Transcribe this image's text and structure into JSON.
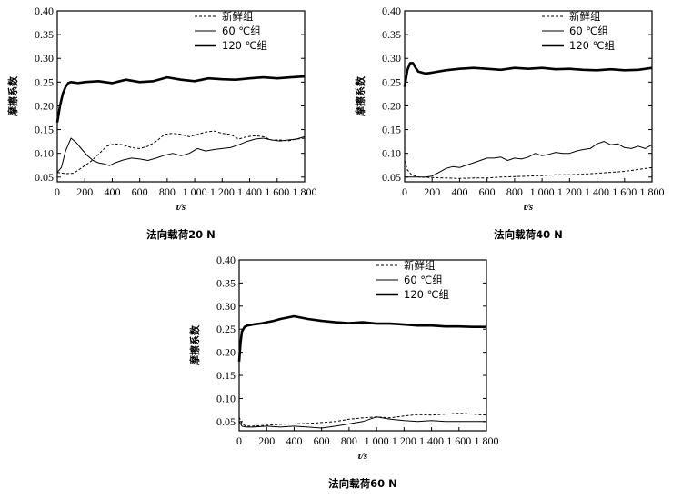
{
  "chart_data": [
    {
      "type": "line",
      "caption": "法向载荷20 N",
      "xlabel": "t/s",
      "ylabel": "摩擦系数",
      "xlim": [
        0,
        1800
      ],
      "ylim": [
        0.04,
        0.4
      ],
      "xticks": [
        0,
        200,
        400,
        600,
        800,
        1000,
        1200,
        1400,
        1600,
        1800
      ],
      "xtick_labels": [
        "0",
        "200",
        "400",
        "600",
        "800",
        "1 000",
        "1 200",
        "1 400",
        "1 600",
        "1 800"
      ],
      "yticks": [
        0.05,
        0.1,
        0.15,
        0.2,
        0.25,
        0.3,
        0.35,
        0.4
      ],
      "ytick_labels": [
        "0.05",
        "0.10",
        "0.15",
        "0.20",
        "0.25",
        "0.30",
        "0.35",
        "0.40"
      ],
      "legend_position": "top-right",
      "series": [
        {
          "name": "新鲜组",
          "style": "dashed",
          "x": [
            0,
            60,
            120,
            180,
            240,
            300,
            360,
            420,
            480,
            540,
            600,
            660,
            720,
            780,
            840,
            900,
            960,
            1020,
            1080,
            1140,
            1200,
            1260,
            1320,
            1380,
            1440,
            1500,
            1560,
            1620,
            1680,
            1740,
            1800
          ],
          "values": [
            0.06,
            0.057,
            0.058,
            0.07,
            0.082,
            0.098,
            0.115,
            0.12,
            0.118,
            0.112,
            0.11,
            0.115,
            0.125,
            0.14,
            0.142,
            0.14,
            0.135,
            0.14,
            0.145,
            0.147,
            0.142,
            0.14,
            0.13,
            0.135,
            0.137,
            0.135,
            0.128,
            0.128,
            0.126,
            0.13,
            0.132
          ]
        },
        {
          "name": "60 ℃组",
          "style": "solid",
          "x": [
            0,
            30,
            60,
            100,
            140,
            180,
            220,
            260,
            300,
            340,
            380,
            420,
            480,
            540,
            600,
            660,
            720,
            780,
            840,
            900,
            960,
            1020,
            1080,
            1140,
            1200,
            1260,
            1320,
            1380,
            1440,
            1500,
            1560,
            1620,
            1680,
            1740,
            1800
          ],
          "values": [
            0.06,
            0.07,
            0.105,
            0.132,
            0.122,
            0.108,
            0.095,
            0.085,
            0.08,
            0.078,
            0.074,
            0.08,
            0.086,
            0.09,
            0.088,
            0.085,
            0.09,
            0.096,
            0.1,
            0.095,
            0.1,
            0.11,
            0.105,
            0.108,
            0.11,
            0.112,
            0.118,
            0.125,
            0.13,
            0.132,
            0.128,
            0.126,
            0.128,
            0.13,
            0.135
          ]
        },
        {
          "name": "120 ℃组",
          "style": "thick",
          "x": [
            0,
            20,
            40,
            60,
            80,
            100,
            150,
            200,
            300,
            400,
            500,
            600,
            700,
            800,
            900,
            1000,
            1100,
            1200,
            1300,
            1400,
            1500,
            1600,
            1700,
            1800
          ],
          "values": [
            0.165,
            0.2,
            0.225,
            0.24,
            0.248,
            0.25,
            0.248,
            0.25,
            0.252,
            0.248,
            0.255,
            0.25,
            0.252,
            0.26,
            0.255,
            0.252,
            0.258,
            0.256,
            0.255,
            0.258,
            0.26,
            0.258,
            0.26,
            0.262
          ]
        }
      ]
    },
    {
      "type": "line",
      "caption": "法向载荷40 N",
      "xlabel": "t/s",
      "ylabel": "摩擦系数",
      "xlim": [
        0,
        1800
      ],
      "ylim": [
        0.04,
        0.4
      ],
      "xticks": [
        0,
        200,
        400,
        600,
        800,
        1000,
        1200,
        1400,
        1600,
        1800
      ],
      "xtick_labels": [
        "0",
        "200",
        "400",
        "600",
        "800",
        "1 000",
        "1 200",
        "1 400",
        "1 600",
        "1 800"
      ],
      "yticks": [
        0.05,
        0.1,
        0.15,
        0.2,
        0.25,
        0.3,
        0.35,
        0.4
      ],
      "ytick_labels": [
        "0.05",
        "0.10",
        "0.15",
        "0.20",
        "0.25",
        "0.30",
        "0.35",
        "0.40"
      ],
      "legend_position": "top-right",
      "series": [
        {
          "name": "新鲜组",
          "style": "dashed",
          "x": [
            0,
            20,
            50,
            100,
            200,
            300,
            400,
            500,
            600,
            700,
            800,
            900,
            1000,
            1100,
            1200,
            1300,
            1400,
            1500,
            1600,
            1700,
            1800
          ],
          "values": [
            0.085,
            0.065,
            0.055,
            0.05,
            0.049,
            0.048,
            0.047,
            0.048,
            0.048,
            0.05,
            0.051,
            0.052,
            0.053,
            0.055,
            0.055,
            0.056,
            0.058,
            0.06,
            0.062,
            0.066,
            0.07
          ]
        },
        {
          "name": "60 ℃组",
          "style": "solid",
          "x": [
            0,
            50,
            100,
            150,
            200,
            250,
            300,
            350,
            400,
            450,
            500,
            550,
            600,
            650,
            700,
            750,
            800,
            850,
            900,
            950,
            1000,
            1050,
            1100,
            1150,
            1200,
            1250,
            1300,
            1350,
            1400,
            1450,
            1500,
            1550,
            1600,
            1650,
            1700,
            1750,
            1800
          ],
          "values": [
            0.05,
            0.05,
            0.05,
            0.05,
            0.052,
            0.06,
            0.068,
            0.072,
            0.07,
            0.075,
            0.08,
            0.085,
            0.09,
            0.09,
            0.092,
            0.085,
            0.09,
            0.088,
            0.092,
            0.1,
            0.095,
            0.098,
            0.102,
            0.1,
            0.1,
            0.105,
            0.108,
            0.11,
            0.12,
            0.125,
            0.118,
            0.12,
            0.112,
            0.11,
            0.115,
            0.11,
            0.118
          ]
        },
        {
          "name": "120 ℃组",
          "style": "thick",
          "x": [
            0,
            20,
            40,
            60,
            80,
            100,
            150,
            200,
            300,
            400,
            500,
            600,
            700,
            800,
            900,
            1000,
            1100,
            1200,
            1300,
            1400,
            1500,
            1600,
            1700,
            1800
          ],
          "values": [
            0.24,
            0.275,
            0.29,
            0.29,
            0.28,
            0.272,
            0.268,
            0.27,
            0.275,
            0.278,
            0.28,
            0.278,
            0.276,
            0.28,
            0.278,
            0.28,
            0.277,
            0.278,
            0.276,
            0.275,
            0.277,
            0.275,
            0.276,
            0.28
          ]
        }
      ]
    },
    {
      "type": "line",
      "caption": "法向载荷60 N",
      "xlabel": "t/s",
      "ylabel": "摩擦系数",
      "xlim": [
        0,
        1800
      ],
      "ylim": [
        0.03,
        0.4
      ],
      "xticks": [
        0,
        200,
        400,
        600,
        800,
        1000,
        1200,
        1400,
        1600,
        1800
      ],
      "xtick_labels": [
        "0",
        "200",
        "400",
        "600",
        "800",
        "1 000",
        "1 200",
        "1 400",
        "1 600",
        "1 800"
      ],
      "yticks": [
        0.05,
        0.1,
        0.15,
        0.2,
        0.25,
        0.3,
        0.35,
        0.4
      ],
      "ytick_labels": [
        "0.05",
        "0.10",
        "0.15",
        "0.20",
        "0.25",
        "0.30",
        "0.35",
        "0.40"
      ],
      "legend_position": "top-right",
      "series": [
        {
          "name": "新鲜组",
          "style": "dashed",
          "x": [
            0,
            20,
            50,
            100,
            200,
            300,
            400,
            500,
            600,
            700,
            800,
            900,
            1000,
            1100,
            1200,
            1300,
            1400,
            1500,
            1600,
            1700,
            1800
          ],
          "values": [
            0.06,
            0.045,
            0.04,
            0.04,
            0.042,
            0.044,
            0.045,
            0.046,
            0.048,
            0.05,
            0.055,
            0.058,
            0.06,
            0.058,
            0.062,
            0.065,
            0.064,
            0.066,
            0.068,
            0.066,
            0.064
          ]
        },
        {
          "name": "60 ℃组",
          "style": "solid",
          "x": [
            0,
            20,
            50,
            100,
            200,
            300,
            400,
            500,
            600,
            700,
            800,
            900,
            1000,
            1100,
            1200,
            1300,
            1400,
            1500,
            1600,
            1700,
            1800
          ],
          "values": [
            0.05,
            0.04,
            0.038,
            0.038,
            0.04,
            0.038,
            0.04,
            0.038,
            0.036,
            0.04,
            0.045,
            0.05,
            0.06,
            0.055,
            0.052,
            0.05,
            0.052,
            0.05,
            0.05,
            0.05,
            0.05
          ]
        },
        {
          "name": "120 ℃组",
          "style": "thick",
          "x": [
            0,
            10,
            20,
            40,
            60,
            100,
            150,
            200,
            250,
            300,
            350,
            400,
            450,
            500,
            600,
            700,
            800,
            900,
            1000,
            1100,
            1200,
            1300,
            1400,
            1500,
            1600,
            1700,
            1800
          ],
          "values": [
            0.18,
            0.22,
            0.245,
            0.255,
            0.258,
            0.26,
            0.262,
            0.265,
            0.268,
            0.272,
            0.275,
            0.278,
            0.275,
            0.272,
            0.268,
            0.265,
            0.263,
            0.265,
            0.262,
            0.262,
            0.26,
            0.258,
            0.258,
            0.256,
            0.256,
            0.255,
            0.255
          ]
        }
      ]
    }
  ]
}
